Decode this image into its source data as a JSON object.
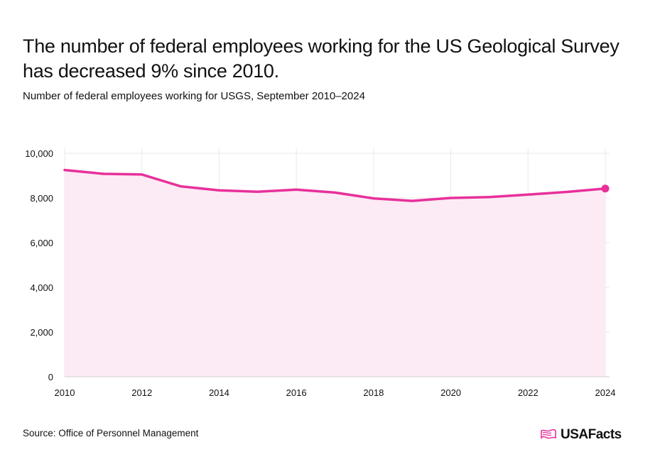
{
  "header": {
    "title": "The number of federal employees working for the US Geological Survey has decreased 9% since 2010.",
    "subtitle": "Number of federal employees working for USGS, September 2010–2024"
  },
  "footer": {
    "source": "Source: Office of Personnel Management",
    "logo_text": "USAFacts"
  },
  "colors": {
    "line": "#e8309a",
    "area": "#fcebf4",
    "grid": "#ece7ea",
    "axis": "#cfcfcf"
  },
  "chart_data": {
    "type": "area",
    "title": "The number of federal employees working for the US Geological Survey has decreased 9% since 2010.",
    "xlabel": "",
    "ylabel": "",
    "x": [
      2010,
      2011,
      2012,
      2013,
      2014,
      2015,
      2016,
      2017,
      2018,
      2019,
      2020,
      2021,
      2022,
      2023,
      2024
    ],
    "series": [
      {
        "name": "USGS federal employees",
        "values": [
          9250,
          9080,
          9050,
          8520,
          8340,
          8280,
          8370,
          8240,
          7980,
          7870,
          8000,
          8040,
          8150,
          8270,
          8420
        ]
      }
    ],
    "xlim": [
      2010,
      2024
    ],
    "ylim": [
      0,
      10000
    ],
    "x_ticks": [
      "2010",
      "2012",
      "2014",
      "2016",
      "2018",
      "2020",
      "2022",
      "2024"
    ],
    "x_tick_values": [
      2010,
      2012,
      2014,
      2016,
      2018,
      2020,
      2022,
      2024
    ],
    "y_ticks": [
      "0",
      "2,000",
      "4,000",
      "6,000",
      "8,000",
      "10,000"
    ],
    "y_tick_values": [
      0,
      2000,
      4000,
      6000,
      8000,
      10000
    ],
    "grid": true,
    "end_marker": true
  }
}
